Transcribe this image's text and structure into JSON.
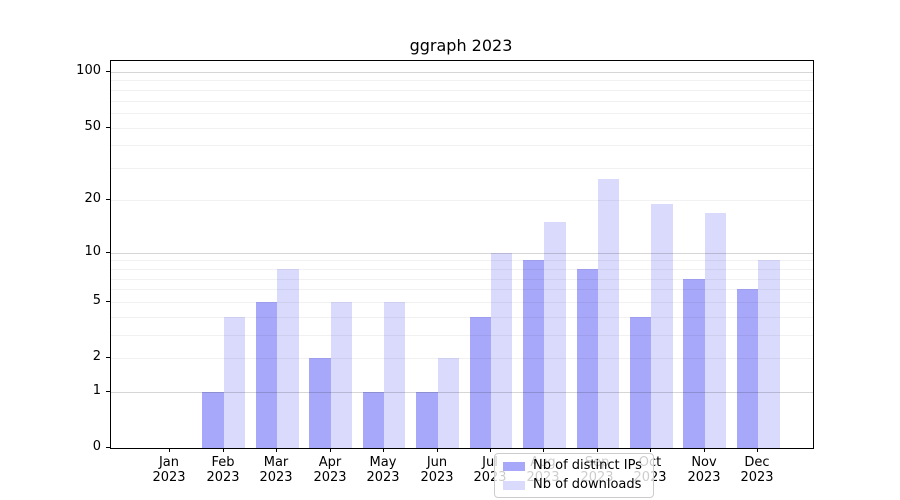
{
  "chart_data": {
    "type": "bar",
    "title": "ggraph 2023",
    "xlabel": "",
    "ylabel": "",
    "categories": [
      "Jan 2023",
      "Feb 2023",
      "Mar 2023",
      "Apr 2023",
      "May 2023",
      "Jun 2023",
      "Jul 2023",
      "Aug 2023",
      "Sep 2023",
      "Oct 2023",
      "Nov 2023",
      "Dec 2023"
    ],
    "series": [
      {
        "name": "Nb of distinct IPs",
        "color": "#a8a8fb",
        "values": [
          0,
          1,
          5,
          2,
          1,
          1,
          4,
          9,
          8,
          4,
          7,
          6
        ]
      },
      {
        "name": "Nb of downloads",
        "color": "#dadafc",
        "values": [
          0,
          4,
          8,
          5,
          5,
          2,
          10,
          15,
          26,
          19,
          17,
          9
        ]
      }
    ],
    "yscale": "log1p",
    "ylim": [
      0,
      114.6
    ],
    "ytick_values": [
      0,
      1,
      2,
      5,
      10,
      20,
      50,
      100
    ],
    "ytick_labels": [
      "0",
      "1",
      "2",
      "5",
      "10",
      "20",
      "50",
      "100"
    ],
    "grid": {
      "major_values": [
        1,
        10,
        100
      ],
      "minor_values": [
        2,
        3,
        4,
        5,
        6,
        7,
        8,
        9,
        20,
        30,
        40,
        50,
        60,
        70,
        80,
        90
      ],
      "major_color": "rgba(0,0,0,0.16)",
      "minor_color": "rgba(0,0,0,0.055)"
    },
    "legend": {
      "position": "lower-center"
    }
  }
}
